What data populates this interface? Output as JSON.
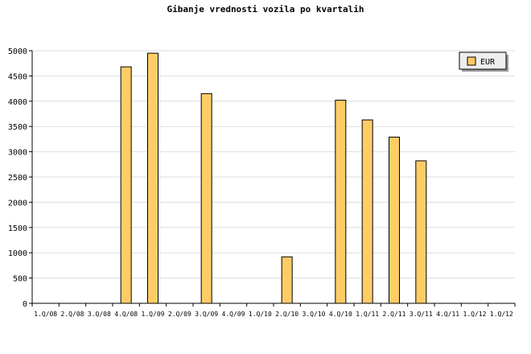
{
  "chart_data": {
    "type": "bar",
    "title": "Gibanje vrednosti vozila po kvartalih",
    "categories": [
      "1.Q/08",
      "2.Q/08",
      "3.Q/08",
      "4.Q/08",
      "1.Q/09",
      "2.Q/09",
      "3.Q/09",
      "4.Q/09",
      "1.Q/10",
      "2.Q/10",
      "3.Q/10",
      "4.Q/10",
      "1.Q/11",
      "2.Q/11",
      "3.Q/11",
      "4.Q/11",
      "1.Q/12",
      "1.Q/12"
    ],
    "series": [
      {
        "name": "EUR",
        "color": "#ffcc66",
        "values": [
          0,
          0,
          0,
          4680,
          4950,
          0,
          4150,
          0,
          0,
          920,
          0,
          4020,
          3630,
          3290,
          2820,
          0,
          0,
          0
        ]
      }
    ],
    "ylim": [
      0,
      5000
    ],
    "yticks": [
      0,
      500,
      1000,
      1500,
      2000,
      2500,
      3000,
      3500,
      4000,
      4500,
      5000
    ],
    "grid": true,
    "legend": "top-right",
    "xlabel": "",
    "ylabel": ""
  }
}
